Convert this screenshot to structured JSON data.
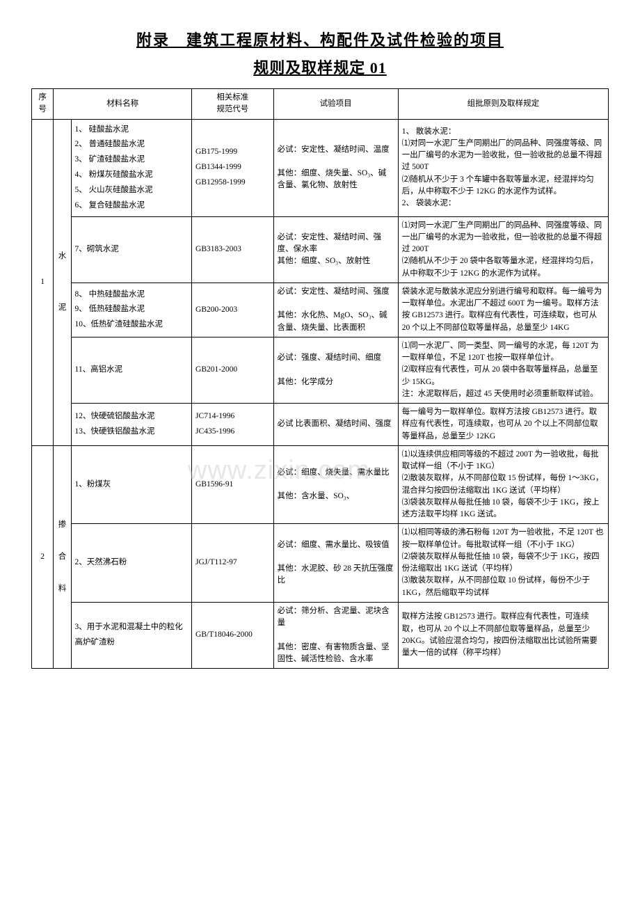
{
  "title": {
    "main": "附录　建筑工程原材料、构配件及试件检验的项目",
    "sub": "规则及取样规定 01"
  },
  "watermark": "www.zixin.com",
  "headers": {
    "seq": "序号",
    "name": "材料名称",
    "std": "相关标准\n规范代号",
    "test": "试验项目",
    "rule": "组批原则及取样规定"
  },
  "row1": {
    "seq": "1",
    "cat": "水泥",
    "r1": {
      "name": "1、 硅酸盐水泥\n2、 普通硅酸盐水泥\n3、 矿渣硅酸盐水泥\n4、 粉煤灰硅酸盐水泥\n5、 火山灰硅酸盐水泥\n6、 复合硅酸盐水泥",
      "std": "GB175-1999\nGB1344-1999\nGB12958-1999",
      "test": "必试：安定性、凝结时间、温度\n\n其他：细度、烧失量、SO₃、碱含量、氯化物、放射性",
      "rule": "1、 散装水泥：\n⑴对同一水泥厂生产同期出厂的同品种、同强度等级、同一出厂编号的水泥为一验收批，但一验收批的总量不得超过 500T\n⑵随机从不少于 3 个车罐中各取等量水泥，经混拌均匀后，从中称取不少于 12KG 的水泥作为试样。\n2、 袋装水泥："
    },
    "r2": {
      "name": "7、砌筑水泥",
      "std": "GB3183-2003",
      "test": "必试：安定性、凝结时间、强度、保水率\n其他：细度、SO₃、放射性",
      "rule": "⑴对同一水泥厂生产同期出厂的同品种、同强度等级、同一出厂编号的水泥为一验收批，但一验收批的总量不得超过 200T\n⑵随机从不少于 20 袋中各取等量水泥，经混拌均匀后，从中称取不少于 12KG 的水泥作为试样。"
    },
    "r3": {
      "name": "8、 中热硅酸盐水泥\n9、 低热硅酸盐水泥\n10、低热矿渣硅酸盐水泥",
      "std": "GB200-2003",
      "test": "必试：安定性、凝结时间、强度\n\n其他：水化热、MgO、SO₃、碱含量、烧失量、比表面积",
      "rule": "袋装水泥与散装水泥应分别进行编号和取样。每一编号为一取样单位。水泥出厂不超过 600T 为一编号。取样方法按 GB12573 进行。取样应有代表性，可连续取，也可从 20 个以上不同部位取等量样品，总量至少 14KG"
    },
    "r4": {
      "name": "11、高铝水泥",
      "std": "GB201-2000",
      "test": "必试：强度、凝结时间、细度\n\n其他：化学成分",
      "rule": "⑴同一水泥厂、同一类型、同一编号的水泥，每 120T 为一取样单位，不足 120T 也按一取样单位计。\n⑵取样应有代表性，可从 20 袋中各取等量样品，总量至少 15KG。\n注：水泥取样后，超过 45 天使用时必须重新取样试验。"
    },
    "r5": {
      "name": "12、快硬硫铝酸盐水泥\n13、快硬铁铝酸盐水泥",
      "std": "JC714-1996\nJC435-1996",
      "test": "必试 比表面积、凝结时间、强度",
      "rule": "每一编号为一取样单位。取样方法按 GB12573 进行。取样应有代表性，可连续取，也可从 20 个以上不同部位取等量样品，总量至少 12KG"
    }
  },
  "row2": {
    "seq": "2",
    "cat": "掺合料",
    "r1": {
      "name": "1、粉煤灰",
      "std": "GB1596-91",
      "test": "必试：细度、烧失量、需水量比\n\n其他：含水量、SO₃、",
      "rule": "⑴以连续供应相同等级的不超过 200T 为一验收批，每批取试样一组（不小于 1KG）\n⑵散装灰取样，从不同部位取 15 份试样，每份 1～3KG，混合拌匀按四份法缩取出 1KG 送试（平均样）\n⑶袋装灰取样从每批任抽 10 袋，每袋不少于 1KG，按上述方法取平均样 1KG 送试。"
    },
    "r2": {
      "name": "2、天然沸石粉",
      "std": "JGJ/T112-97",
      "test": "必试：细度、需水量比、吸铵值\n\n其他：水泥胶、砂 28 天抗压强度比",
      "rule": "⑴以相同等级的沸石粉每 120T 为一验收批，不足 120T 也按一取样单位计。每批取试样一组（不小于 1KG）\n⑵袋装灰取样从每批任抽 10 袋，每袋不少于 1KG，按四份法缩取出 1KG 送试（平均样）\n⑶散装灰取样，从不同部位取 10 份试样，每份不少于 1KG，然后缩取平均试样"
    },
    "r3": {
      "name": "3、用于水泥和混凝土中的粒化高炉矿渣粉",
      "std": "GB/T18046-2000",
      "test": "必试：筛分析、含泥量、泥块含量\n\n其他：密度、有害物质含量、坚固性、碱活性检验、含水率",
      "rule": "取样方法按 GB12573 进行。取样应有代表性，可连续取，也可从 20 个以上不同部位取等量样品，总量至少 20KG。试验应混合均匀，按四份法缩取出比试验所需要量大一倍的试样（称平均样）"
    }
  },
  "colors": {
    "text": "#000000",
    "background": "#ffffff",
    "border": "#000000",
    "watermark": "rgba(200,200,200,0.45)"
  },
  "fonts": {
    "title_size": 22,
    "body_size": 11.5
  }
}
